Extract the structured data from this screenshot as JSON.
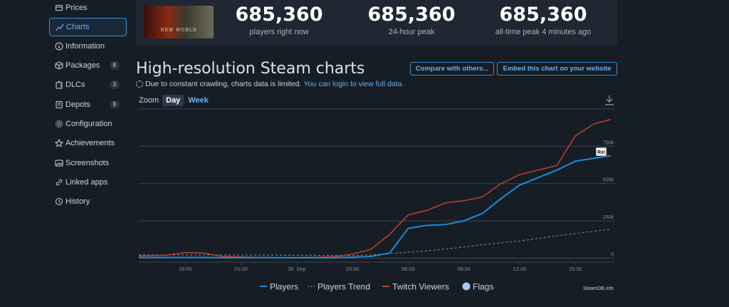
{
  "sidebar": {
    "items": [
      {
        "label": "Prices",
        "icon": "price-tag-icon"
      },
      {
        "label": "Charts",
        "icon": "chart-icon",
        "active": true
      },
      {
        "label": "Information",
        "icon": "info-icon"
      },
      {
        "label": "Packages",
        "icon": "package-icon",
        "count": "8"
      },
      {
        "label": "DLCs",
        "icon": "puzzle-icon",
        "count": "3"
      },
      {
        "label": "Depots",
        "icon": "depot-icon",
        "count": "9"
      },
      {
        "label": "Configuration",
        "icon": "gear-icon"
      },
      {
        "label": "Achievements",
        "icon": "star-icon"
      },
      {
        "label": "Screenshots",
        "icon": "image-icon"
      },
      {
        "label": "Linked apps",
        "icon": "link-icon"
      },
      {
        "label": "History",
        "icon": "history-icon"
      }
    ]
  },
  "game": {
    "logo_text": "NEW WORLD"
  },
  "stats": [
    {
      "value": "685,360",
      "label": "players right now"
    },
    {
      "value": "685,360",
      "label": "24-hour peak"
    },
    {
      "value": "685,360",
      "label": "all-time peak 4 minutes ago"
    }
  ],
  "header": {
    "title": "High-resolution Steam charts",
    "compare_button": "Compare with others...",
    "embed_button": "Embed this chart on your website",
    "note": "Due to constant crawling, charts data is limited.",
    "login_link": "You can login to view full data."
  },
  "zoom": {
    "label": "Zoom",
    "options": [
      "Day",
      "Week"
    ],
    "selected": "Day"
  },
  "colors": {
    "players": "#1f8ad4",
    "twitch": "#c0412a",
    "trend": "#8a8f96",
    "flags": "#a8c8f0",
    "grid": "#3a4250"
  },
  "chart_data": {
    "type": "line",
    "x_ticks": [
      "18:00",
      "21:00",
      "28. Sep",
      "03:00",
      "06:00",
      "09:00",
      "12:00",
      "15:00"
    ],
    "y_ticks": [
      "0",
      "250k",
      "500k",
      "750k"
    ],
    "ylim": [
      0,
      1000000
    ],
    "grid": true,
    "legend_position": "bottom",
    "flag_label": "Rel",
    "series": [
      {
        "name": "Players",
        "x": [
          15.5,
          17,
          18,
          19,
          20,
          21,
          22,
          23,
          24,
          25,
          26,
          26.9,
          28,
          29,
          30,
          31,
          32,
          33,
          34,
          35,
          36,
          37,
          38,
          39,
          40,
          40.9
        ],
        "values": [
          5000,
          5000,
          5000,
          5000,
          4000,
          4000,
          4000,
          4000,
          3000,
          3000,
          4000,
          6000,
          12000,
          35000,
          200000,
          220000,
          225000,
          250000,
          300000,
          400000,
          490000,
          540000,
          590000,
          650000,
          670000,
          685360
        ]
      },
      {
        "name": "Twitch Viewers",
        "x": [
          15.5,
          17,
          18,
          19,
          20,
          21,
          22,
          23,
          24,
          25,
          26,
          26.9,
          28,
          29,
          30,
          31,
          32,
          33,
          34,
          35,
          36,
          37,
          38,
          39,
          40,
          40.9
        ],
        "values": [
          15000,
          20000,
          38000,
          35000,
          12000,
          8000,
          5000,
          4000,
          5000,
          6000,
          10000,
          25000,
          60000,
          160000,
          290000,
          320000,
          370000,
          385000,
          410000,
          500000,
          560000,
          590000,
          620000,
          820000,
          900000,
          930000
        ]
      },
      {
        "name": "Players Trend",
        "x": [
          15.5,
          20,
          24,
          26.9,
          28,
          30,
          32,
          34,
          36,
          38,
          40.9
        ],
        "values": [
          22000,
          22000,
          20000,
          18000,
          22000,
          40000,
          60000,
          90000,
          115000,
          150000,
          195000
        ]
      }
    ],
    "legend": [
      "Players",
      "Players Trend",
      "Twitch Viewers",
      "Flags"
    ]
  },
  "footer": {
    "brand": "SteamDB.info"
  }
}
